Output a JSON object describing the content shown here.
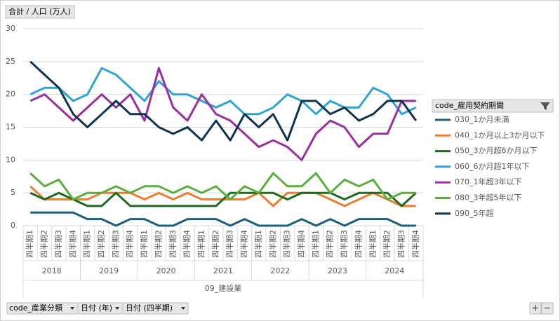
{
  "chart_data": {
    "type": "line",
    "value_field": "合計 / 人口 (万人)",
    "legend_title": "code_雇用契約期間",
    "filter_fields": [
      "code_産業分類",
      "日付 (年)",
      "日付 (四半期)"
    ],
    "group": "09_建設業",
    "years": [
      "2018",
      "2019",
      "2020",
      "2021",
      "2022",
      "2023",
      "2024"
    ],
    "categories": [
      "四半期1",
      "四半期2",
      "四半期3",
      "四半期4",
      "四半期1",
      "四半期2",
      "四半期3",
      "四半期4",
      "四半期1",
      "四半期2",
      "四半期3",
      "四半期4",
      "四半期1",
      "四半期2",
      "四半期3",
      "四半期4",
      "四半期1",
      "四半期2",
      "四半期3",
      "四半期4",
      "四半期1",
      "四半期2",
      "四半期3",
      "四半期4",
      "四半期1",
      "四半期2",
      "四半期3",
      "四半期4"
    ],
    "ylim": [
      0,
      30
    ],
    "yticks": [
      0,
      5,
      10,
      15,
      20,
      25,
      30
    ],
    "grid": true,
    "legend": "right",
    "series": [
      {
        "name": "030_1か月未満",
        "color": "#1d5f7d",
        "values": [
          2,
          2,
          2,
          2,
          1,
          1,
          0,
          1,
          1,
          0,
          0,
          1,
          1,
          1,
          0,
          1,
          0,
          0,
          0,
          1,
          0,
          1,
          0,
          1,
          1,
          1,
          0,
          0
        ]
      },
      {
        "name": "040_1か月以上3か月以下",
        "color": "#ed7d31",
        "values": [
          6,
          4,
          4,
          4,
          4,
          5,
          5,
          5,
          4,
          5,
          4,
          5,
          4,
          4,
          4,
          4,
          5,
          3,
          5,
          5,
          5,
          4,
          3,
          4,
          5,
          4,
          3,
          3
        ]
      },
      {
        "name": "050_3か月超6か月以下",
        "color": "#1e6b1e",
        "values": [
          5,
          4,
          5,
          4,
          3,
          3,
          5,
          3,
          3,
          3,
          3,
          3,
          3,
          3,
          5,
          5,
          5,
          5,
          4,
          5,
          5,
          5,
          4,
          5,
          5,
          5,
          3,
          5
        ]
      },
      {
        "name": "060_6か月超1年以下",
        "color": "#2ea4d6",
        "values": [
          20,
          21,
          21,
          19,
          20,
          24,
          23,
          21,
          19,
          22,
          20,
          20,
          19,
          18,
          19,
          17,
          17,
          18,
          20,
          19,
          17,
          19,
          18,
          18,
          21,
          20,
          17,
          18
        ]
      },
      {
        "name": "070_1年超3年以下",
        "color": "#9b2f9e",
        "values": [
          19,
          20,
          18,
          16,
          18,
          20,
          18,
          20,
          16,
          24,
          18,
          16,
          20,
          17,
          16,
          14,
          12,
          13,
          12,
          10,
          14,
          16,
          15,
          12,
          14,
          14,
          19,
          19
        ]
      },
      {
        "name": "080_3年超5年以下",
        "color": "#5aae3c",
        "values": [
          8,
          6,
          7,
          4,
          5,
          5,
          6,
          5,
          6,
          6,
          5,
          6,
          5,
          6,
          4,
          6,
          5,
          8,
          6,
          6,
          8,
          5,
          7,
          6,
          7,
          4,
          5,
          5
        ]
      },
      {
        "name": "090_5年超",
        "color": "#0d3350",
        "values": [
          25,
          23,
          21,
          17,
          15,
          17,
          19,
          17,
          17,
          15,
          14,
          15,
          13,
          16,
          13,
          17,
          15,
          17,
          13,
          19,
          19,
          17,
          18,
          16,
          17,
          19,
          19,
          16
        ]
      }
    ]
  }
}
